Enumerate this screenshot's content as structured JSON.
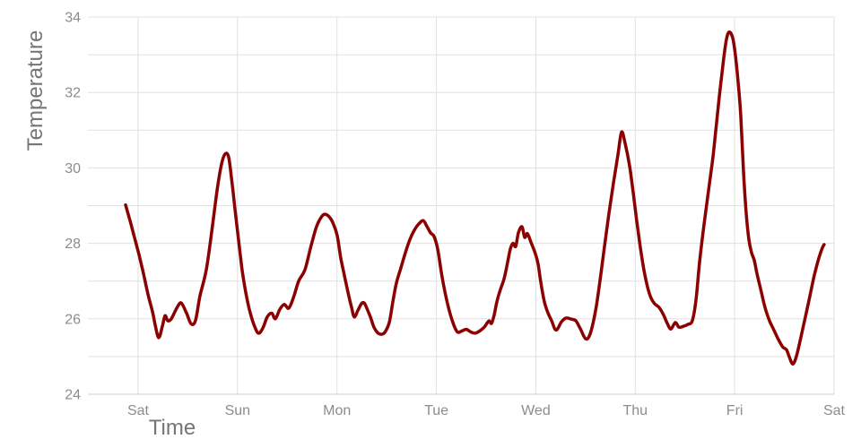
{
  "chart_data": {
    "type": "line",
    "xlabel": "Time",
    "ylabel": "Temperature",
    "x_tick_labels": [
      "Sat",
      "Sun",
      "Mon",
      "Tue",
      "Wed",
      "Thu",
      "Fri",
      "Sat"
    ],
    "x_tick_positions": [
      0,
      1,
      2,
      3,
      4,
      5,
      6,
      7
    ],
    "xlim": [
      -0.505,
      7
    ],
    "ylim": [
      24,
      34
    ],
    "y_tick_values": [
      24,
      26,
      28,
      30,
      32,
      34
    ],
    "y_tick_labels": [
      "24",
      "26",
      "28",
      "30",
      "32",
      "34"
    ],
    "y_grid_step": 1,
    "grid": true,
    "legend": false,
    "x_unit": "day-of-week",
    "series": [
      {
        "name": "temperature",
        "color": "#8B0000",
        "stroke_width": 3.5,
        "points": [
          [
            -0.126,
            29.02
          ],
          [
            -0.081,
            28.6
          ],
          [
            -0.036,
            28.15
          ],
          [
            0.009,
            27.7
          ],
          [
            0.054,
            27.2
          ],
          [
            0.099,
            26.65
          ],
          [
            0.144,
            26.2
          ],
          [
            0.171,
            25.85
          ],
          [
            0.207,
            25.5
          ],
          [
            0.244,
            25.8
          ],
          [
            0.271,
            26.08
          ],
          [
            0.298,
            25.95
          ],
          [
            0.334,
            26.0
          ],
          [
            0.388,
            26.28
          ],
          [
            0.433,
            26.42
          ],
          [
            0.487,
            26.15
          ],
          [
            0.532,
            25.87
          ],
          [
            0.577,
            25.95
          ],
          [
            0.622,
            26.6
          ],
          [
            0.686,
            27.3
          ],
          [
            0.74,
            28.3
          ],
          [
            0.794,
            29.4
          ],
          [
            0.839,
            30.1
          ],
          [
            0.875,
            30.37
          ],
          [
            0.911,
            30.28
          ],
          [
            0.947,
            29.55
          ],
          [
            0.983,
            28.7
          ],
          [
            1.019,
            27.9
          ],
          [
            1.046,
            27.3
          ],
          [
            1.083,
            26.7
          ],
          [
            1.119,
            26.25
          ],
          [
            1.164,
            25.85
          ],
          [
            1.209,
            25.62
          ],
          [
            1.254,
            25.75
          ],
          [
            1.299,
            26.05
          ],
          [
            1.344,
            26.15
          ],
          [
            1.38,
            26.0
          ],
          [
            1.425,
            26.25
          ],
          [
            1.47,
            26.38
          ],
          [
            1.515,
            26.28
          ],
          [
            1.561,
            26.55
          ],
          [
            1.615,
            27.0
          ],
          [
            1.678,
            27.3
          ],
          [
            1.741,
            27.95
          ],
          [
            1.795,
            28.45
          ],
          [
            1.849,
            28.72
          ],
          [
            1.885,
            28.77
          ],
          [
            1.93,
            28.68
          ],
          [
            1.966,
            28.5
          ],
          [
            2.003,
            28.2
          ],
          [
            2.039,
            27.6
          ],
          [
            2.075,
            27.15
          ],
          [
            2.111,
            26.7
          ],
          [
            2.147,
            26.3
          ],
          [
            2.174,
            26.05
          ],
          [
            2.21,
            26.22
          ],
          [
            2.246,
            26.4
          ],
          [
            2.273,
            26.42
          ],
          [
            2.3,
            26.28
          ],
          [
            2.336,
            26.05
          ],
          [
            2.372,
            25.78
          ],
          [
            2.409,
            25.63
          ],
          [
            2.445,
            25.59
          ],
          [
            2.481,
            25.64
          ],
          [
            2.526,
            25.9
          ],
          [
            2.562,
            26.45
          ],
          [
            2.598,
            26.95
          ],
          [
            2.643,
            27.35
          ],
          [
            2.688,
            27.75
          ],
          [
            2.733,
            28.1
          ],
          [
            2.778,
            28.35
          ],
          [
            2.824,
            28.52
          ],
          [
            2.869,
            28.6
          ],
          [
            2.905,
            28.45
          ],
          [
            2.941,
            28.28
          ],
          [
            2.977,
            28.18
          ],
          [
            3.013,
            27.85
          ],
          [
            3.058,
            27.1
          ],
          [
            3.112,
            26.4
          ],
          [
            3.166,
            25.9
          ],
          [
            3.211,
            25.65
          ],
          [
            3.257,
            25.68
          ],
          [
            3.302,
            25.72
          ],
          [
            3.347,
            25.65
          ],
          [
            3.392,
            25.62
          ],
          [
            3.437,
            25.68
          ],
          [
            3.482,
            25.78
          ],
          [
            3.527,
            25.94
          ],
          [
            3.554,
            25.88
          ],
          [
            3.581,
            26.1
          ],
          [
            3.608,
            26.45
          ],
          [
            3.644,
            26.78
          ],
          [
            3.68,
            27.05
          ],
          [
            3.717,
            27.5
          ],
          [
            3.744,
            27.85
          ],
          [
            3.771,
            28.0
          ],
          [
            3.798,
            27.92
          ],
          [
            3.825,
            28.28
          ],
          [
            3.861,
            28.44
          ],
          [
            3.888,
            28.16
          ],
          [
            3.915,
            28.26
          ],
          [
            3.951,
            28.03
          ],
          [
            3.996,
            27.72
          ],
          [
            4.023,
            27.45
          ],
          [
            4.05,
            26.97
          ],
          [
            4.086,
            26.45
          ],
          [
            4.123,
            26.15
          ],
          [
            4.159,
            25.95
          ],
          [
            4.204,
            25.7
          ],
          [
            4.258,
            25.92
          ],
          [
            4.303,
            26.02
          ],
          [
            4.357,
            25.99
          ],
          [
            4.402,
            25.95
          ],
          [
            4.447,
            25.74
          ],
          [
            4.501,
            25.47
          ],
          [
            4.546,
            25.6
          ],
          [
            4.6,
            26.2
          ],
          [
            4.645,
            27.0
          ],
          [
            4.69,
            27.9
          ],
          [
            4.736,
            28.8
          ],
          [
            4.781,
            29.6
          ],
          [
            4.826,
            30.35
          ],
          [
            4.862,
            30.95
          ],
          [
            4.898,
            30.65
          ],
          [
            4.943,
            30.05
          ],
          [
            4.979,
            29.35
          ],
          [
            5.015,
            28.6
          ],
          [
            5.051,
            27.9
          ],
          [
            5.087,
            27.3
          ],
          [
            5.123,
            26.85
          ],
          [
            5.159,
            26.55
          ],
          [
            5.195,
            26.4
          ],
          [
            5.24,
            26.3
          ],
          [
            5.285,
            26.1
          ],
          [
            5.322,
            25.88
          ],
          [
            5.358,
            25.73
          ],
          [
            5.403,
            25.9
          ],
          [
            5.439,
            25.78
          ],
          [
            5.484,
            25.8
          ],
          [
            5.529,
            25.85
          ],
          [
            5.574,
            25.95
          ],
          [
            5.611,
            26.5
          ],
          [
            5.647,
            27.5
          ],
          [
            5.692,
            28.5
          ],
          [
            5.737,
            29.4
          ],
          [
            5.782,
            30.3
          ],
          [
            5.818,
            31.2
          ],
          [
            5.854,
            32.1
          ],
          [
            5.89,
            32.9
          ],
          [
            5.917,
            33.4
          ],
          [
            5.944,
            33.6
          ],
          [
            5.98,
            33.45
          ],
          [
            6.007,
            33.0
          ],
          [
            6.034,
            32.3
          ],
          [
            6.061,
            31.4
          ],
          [
            6.089,
            29.9
          ],
          [
            6.116,
            28.8
          ],
          [
            6.143,
            28.1
          ],
          [
            6.17,
            27.75
          ],
          [
            6.197,
            27.55
          ],
          [
            6.224,
            27.2
          ],
          [
            6.26,
            26.8
          ],
          [
            6.305,
            26.3
          ],
          [
            6.35,
            25.95
          ],
          [
            6.395,
            25.7
          ],
          [
            6.44,
            25.45
          ],
          [
            6.485,
            25.25
          ],
          [
            6.521,
            25.18
          ],
          [
            6.548,
            25.0
          ],
          [
            6.584,
            24.8
          ],
          [
            6.62,
            25.0
          ],
          [
            6.665,
            25.5
          ],
          [
            6.711,
            26.05
          ],
          [
            6.756,
            26.6
          ],
          [
            6.801,
            27.15
          ],
          [
            6.846,
            27.6
          ],
          [
            6.882,
            27.88
          ],
          [
            6.9,
            27.97
          ]
        ]
      }
    ]
  },
  "style": {
    "background": "#ffffff",
    "grid_color": "#e0e0e0",
    "axis_line_color": "#cccccc",
    "tick_label_color": "#8c8c8c",
    "axis_title_color": "#757575",
    "line_color": "#8B0000"
  }
}
